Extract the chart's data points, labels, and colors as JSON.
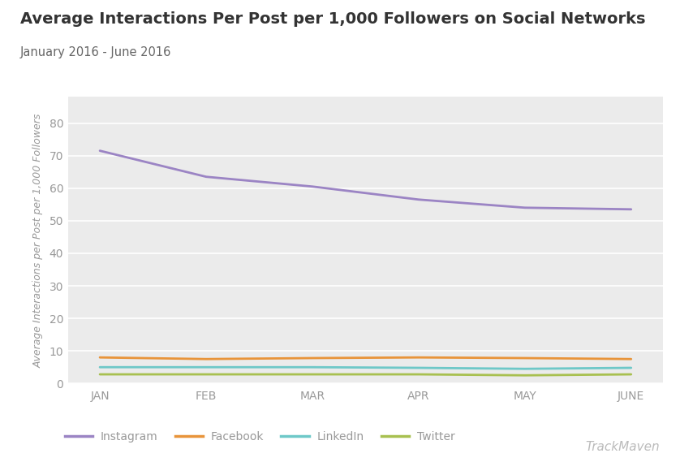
{
  "title": "Average Interactions Per Post per 1,000 Followers on Social Networks",
  "subtitle": "January 2016 - June 2016",
  "ylabel": "Average Interactions per Post per 1,000 Followers",
  "categories": [
    "JAN",
    "FEB",
    "MAR",
    "APR",
    "MAY",
    "JUNE"
  ],
  "series": {
    "Instagram": {
      "values": [
        71.5,
        63.5,
        60.5,
        56.5,
        54.0,
        53.5
      ],
      "color": "#9b84c4",
      "linewidth": 2.0
    },
    "Facebook": {
      "values": [
        8.0,
        7.5,
        7.8,
        8.0,
        7.8,
        7.5
      ],
      "color": "#e8943a",
      "linewidth": 2.0
    },
    "LinkedIn": {
      "values": [
        5.0,
        5.0,
        5.0,
        4.8,
        4.5,
        4.8
      ],
      "color": "#6ec8c8",
      "linewidth": 2.0
    },
    "Twitter": {
      "values": [
        2.8,
        2.8,
        2.8,
        2.8,
        2.5,
        2.8
      ],
      "color": "#a8c050",
      "linewidth": 2.0
    }
  },
  "series_order": [
    "Instagram",
    "Facebook",
    "LinkedIn",
    "Twitter"
  ],
  "ylim": [
    0,
    88
  ],
  "yticks": [
    0,
    10,
    20,
    30,
    40,
    50,
    60,
    70,
    80
  ],
  "background_color": "#ffffff",
  "header_bg_color": "#f0f0f0",
  "plot_bg_color": "#ebebeb",
  "grid_color": "#ffffff",
  "title_fontsize": 14,
  "subtitle_fontsize": 10.5,
  "tick_fontsize": 10,
  "ylabel_fontsize": 9,
  "legend_fontsize": 10,
  "watermark": "TrackMaven",
  "watermark_color": "#bbbbbb",
  "title_color": "#333333",
  "subtitle_color": "#666666",
  "tick_color": "#999999",
  "axis_label_color": "#999999"
}
